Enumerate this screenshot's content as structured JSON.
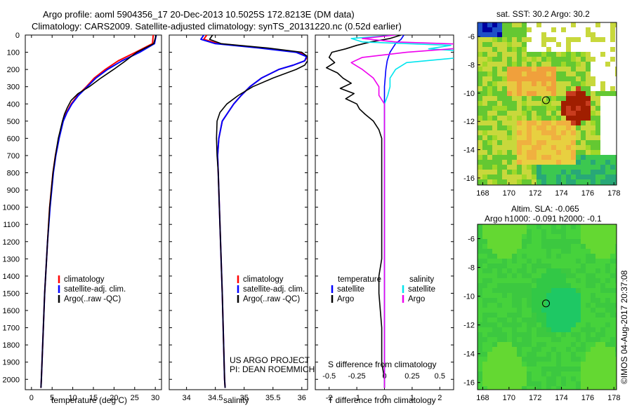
{
  "header": {
    "line1": "Argo profile: aoml 5904356_17 20-Dec-2013 10.5025S 172.8213E (DM data)",
    "line2": "Climatology: CARS2009. Satellite-adjusted climatology: synTS_20131220.nc (0.52d earlier)"
  },
  "depth_ticks": [
    0,
    100,
    200,
    300,
    400,
    500,
    600,
    700,
    800,
    900,
    1000,
    1100,
    1200,
    1300,
    1400,
    1500,
    1600,
    1700,
    1800,
    1900,
    2000
  ],
  "project_note": {
    "line1": "US ARGO PROJECT",
    "line2": "PI: DEAN ROEMMICH"
  },
  "stamp": "©IMOS 04-Aug-2017 20:37:08",
  "colors": {
    "climatology": "#ff0000",
    "satellite": "#0000ff",
    "argo": "#000000",
    "sal_satellite": "#00e5ee",
    "sal_argo": "#ee00ee"
  },
  "chart_data": [
    {
      "type": "line",
      "id": "temperature",
      "xlabel": "temperature (deg C)",
      "ylabel": "",
      "xlim": [
        -1.5,
        31.5
      ],
      "ylim": [
        2060,
        0
      ],
      "xticks": [
        0,
        5,
        10,
        15,
        20,
        25,
        30
      ],
      "legend": [
        "climatology",
        "satellite-adj. clim.",
        "Argo(..raw -QC)"
      ],
      "series": [
        {
          "name": "climatology",
          "depth": [
            0,
            50,
            100,
            150,
            200,
            250,
            300,
            350,
            400,
            450,
            500,
            600,
            700,
            800,
            1000,
            1200,
            1500,
            2000,
            2050
          ],
          "values": [
            29.5,
            29.3,
            25.2,
            21.0,
            17.9,
            15.2,
            13.3,
            11.2,
            9.6,
            8.5,
            7.6,
            6.6,
            5.8,
            5.2,
            4.4,
            3.9,
            3.2,
            2.4,
            2.3
          ]
        },
        {
          "name": "satellite-adj. clim.",
          "depth": [
            0,
            50,
            100,
            150,
            200,
            250,
            300,
            350,
            400,
            450,
            500,
            600,
            700,
            800,
            1000,
            1200,
            1500,
            2000,
            2050
          ],
          "values": [
            30.2,
            29.8,
            26.2,
            21.9,
            18.4,
            15.6,
            13.5,
            11.4,
            9.8,
            8.6,
            7.7,
            6.7,
            5.9,
            5.3,
            4.5,
            3.9,
            3.2,
            2.4,
            2.3
          ]
        },
        {
          "name": "Argo(..raw -QC)",
          "depth": [
            0,
            50,
            100,
            150,
            200,
            250,
            300,
            340,
            380,
            420,
            460,
            500,
            600,
            700,
            800,
            1000,
            1200,
            1500,
            2000,
            2050
          ],
          "values": [
            30.2,
            29.6,
            25.5,
            22.8,
            19.9,
            16.8,
            14.0,
            11.3,
            9.6,
            8.7,
            8.0,
            7.5,
            6.5,
            5.8,
            5.2,
            4.4,
            3.9,
            3.2,
            2.4,
            2.3
          ]
        }
      ]
    },
    {
      "type": "line",
      "id": "salinity",
      "xlabel": "salinity",
      "ylabel": "",
      "xlim": [
        33.7,
        36.1
      ],
      "ylim": [
        2060,
        0
      ],
      "xticks": [
        34,
        34.5,
        35,
        35.5,
        36
      ],
      "xtick_labels": [
        "34",
        "34.5",
        "35",
        "35.5",
        "36"
      ],
      "legend": [
        "climatology",
        "satellite-adj. clim.",
        "Argo(..raw -QC)"
      ],
      "series": [
        {
          "name": "climatology",
          "depth": [
            0,
            25,
            50,
            75,
            100,
            125,
            150,
            175,
            200,
            250,
            300,
            350,
            400,
            450,
            500,
            600,
            700,
            800,
            1000,
            1500,
            2000,
            2050
          ],
          "values": [
            34.35,
            34.3,
            34.55,
            35.3,
            35.95,
            36.1,
            36.05,
            35.85,
            35.6,
            35.3,
            35.1,
            34.95,
            34.82,
            34.72,
            34.62,
            34.56,
            34.54,
            34.55,
            34.57,
            34.62,
            34.66,
            34.67
          ]
        },
        {
          "name": "satellite-adj. clim.",
          "depth": [
            0,
            25,
            50,
            75,
            100,
            125,
            150,
            175,
            200,
            250,
            300,
            350,
            400,
            450,
            500,
            600,
            700,
            800,
            1000,
            1500,
            2000,
            2050
          ],
          "values": [
            34.3,
            34.25,
            34.5,
            35.25,
            35.9,
            36.08,
            36.05,
            35.85,
            35.6,
            35.3,
            35.1,
            34.95,
            34.82,
            34.72,
            34.62,
            34.56,
            34.54,
            34.55,
            34.57,
            34.62,
            34.66,
            34.67
          ]
        },
        {
          "name": "Argo(..raw -QC)",
          "depth": [
            0,
            25,
            50,
            75,
            100,
            125,
            150,
            175,
            200,
            250,
            300,
            350,
            400,
            450,
            500,
            600,
            700,
            800,
            1000,
            1500,
            2000,
            2050
          ],
          "values": [
            34.45,
            34.4,
            34.6,
            35.4,
            36.0,
            36.1,
            36.1,
            36.05,
            35.9,
            35.5,
            35.15,
            34.9,
            34.7,
            34.58,
            34.53,
            34.52,
            34.53,
            34.55,
            34.57,
            34.62,
            34.66,
            34.67
          ]
        }
      ]
    },
    {
      "type": "line",
      "id": "difference",
      "xlabel": "T difference from climatology",
      "xlabel2": "S difference from climatology",
      "xlim": [
        -2.5,
        2.5
      ],
      "ylim": [
        2060,
        0
      ],
      "t_ticks": [
        -2,
        -1,
        0,
        1,
        2
      ],
      "s_ticks": [
        -0.5,
        -0.25,
        0,
        0.25,
        0.5
      ],
      "s_tick_labels": [
        "-0.5",
        "-0.25",
        "0",
        "0.25",
        "0.5"
      ],
      "legend": {
        "temperature": "temperature",
        "salinity": "salinity",
        "t_sat": "satellite",
        "t_argo": "Argo",
        "s_sat": "satellite",
        "s_argo": "Argo"
      },
      "series": [
        {
          "name": "temperature satellite",
          "depth": [
            0,
            25,
            50,
            75,
            100,
            150,
            200,
            300,
            400,
            500,
            600,
            700,
            1000,
            1500,
            2000,
            2050
          ],
          "values": [
            0.7,
            0.6,
            0.4,
            0.3,
            0.2,
            0.1,
            0.05,
            0.0,
            0.0,
            0.0,
            0.0,
            0.0,
            0.0,
            0.0,
            0.0,
            0.0
          ]
        },
        {
          "name": "temperature Argo",
          "depth": [
            0,
            20,
            40,
            60,
            80,
            100,
            130,
            160,
            190,
            220,
            250,
            280,
            310,
            340,
            370,
            400,
            430,
            460,
            500,
            550,
            600,
            700,
            800,
            1000,
            1200,
            1300,
            1400,
            1500,
            1600,
            1700,
            1800,
            1900,
            2000,
            2050
          ],
          "values": [
            0.6,
            0.2,
            -0.5,
            -1.0,
            -1.4,
            -1.9,
            -2.0,
            -1.8,
            -2.1,
            -1.7,
            -1.5,
            -1.2,
            -1.6,
            -1.1,
            -1.4,
            -1.0,
            -0.9,
            -0.7,
            -0.4,
            -0.2,
            -0.1,
            -0.1,
            -0.1,
            -0.1,
            -0.1,
            -0.1,
            -0.2,
            -0.2,
            -0.15,
            -0.1,
            -0.1,
            -0.1,
            0.0,
            0.0
          ]
        },
        {
          "name": "salinity satellite",
          "depth": [
            0,
            20,
            40,
            60,
            80,
            100,
            130,
            160,
            200,
            250,
            300,
            350,
            400,
            500,
            600,
            700,
            800,
            1000,
            1500,
            2000,
            2050
          ],
          "values": [
            0.1,
            -0.3,
            -0.2,
            0.6,
            0.4,
            0.9,
            0.7,
            0.2,
            0.1,
            0.05,
            0.05,
            0.03,
            0.0,
            0.0,
            0.0,
            0.0,
            0.0,
            0.0,
            0.0,
            0.0,
            0.0
          ]
        },
        {
          "name": "salinity Argo",
          "depth": [
            0,
            20,
            40,
            60,
            80,
            100,
            130,
            160,
            200,
            250,
            300,
            350,
            400,
            500,
            600,
            700,
            800,
            1000,
            1500,
            2000,
            2050
          ],
          "values": [
            0.1,
            -0.2,
            0.1,
            1.0,
            0.6,
            0.2,
            -0.2,
            -0.3,
            -0.2,
            -0.1,
            -0.05,
            -0.05,
            0.0,
            0.0,
            0.0,
            0.0,
            0.0,
            0.0,
            0.0,
            0.0,
            0.0
          ]
        }
      ]
    },
    {
      "type": "heatmap",
      "id": "sst-map",
      "title": "sat. SST: 30.2  Argo: 30.2",
      "xticks": [
        168,
        170,
        172,
        174,
        176,
        178
      ],
      "yticks": [
        -6,
        -8,
        -10,
        -12,
        -14,
        -16
      ],
      "xlim": [
        167.6,
        178.2
      ],
      "ylim": [
        -16.5,
        -5
      ],
      "marker": {
        "lon": 172.82,
        "lat": -10.5
      }
    },
    {
      "type": "heatmap",
      "id": "sla-map",
      "title": "Altim. SLA: -0.065",
      "subtitle": "Argo h1000: -0.091  h2000: -0.1",
      "xticks": [
        168,
        170,
        172,
        174,
        176,
        178
      ],
      "yticks": [
        -6,
        -8,
        -10,
        -12,
        -14,
        -16
      ],
      "xlim": [
        167.6,
        178.2
      ],
      "ylim": [
        -16.5,
        -5
      ],
      "marker": {
        "lon": 172.82,
        "lat": -10.5
      }
    }
  ]
}
